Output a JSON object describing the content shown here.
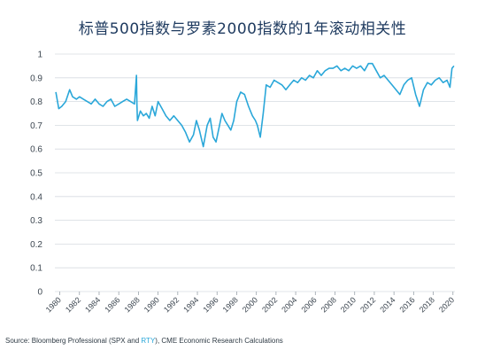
{
  "chart_data": {
    "type": "line",
    "title": "标普500指数与罗素2000指数的1年滚动相关性",
    "xlabel": "",
    "ylabel": "",
    "ylim": [
      0,
      1
    ],
    "xlim": [
      1979.5,
      2020.2
    ],
    "yticks": [
      "0",
      "0.1",
      "0.2",
      "0.3",
      "0.4",
      "0.5",
      "0.6",
      "0.7",
      "0.8",
      "0.9",
      "1"
    ],
    "xticks": [
      "1980",
      "1982",
      "1984",
      "1986",
      "1988",
      "1990",
      "1992",
      "1994",
      "1996",
      "1998",
      "2000",
      "2002",
      "2004",
      "2006",
      "2008",
      "2010",
      "2012",
      "2014",
      "2016",
      "2018",
      "2020"
    ],
    "grid": "horizontal",
    "legend": "none",
    "series": [
      {
        "color": "#2aa7d9",
        "x": [
          1979.6,
          1979.9,
          1980.2,
          1980.6,
          1981.0,
          1981.3,
          1981.7,
          1982.0,
          1982.4,
          1982.8,
          1983.2,
          1983.6,
          1984.0,
          1984.4,
          1984.8,
          1985.2,
          1985.6,
          1986.0,
          1986.4,
          1986.8,
          1987.2,
          1987.6,
          1987.8,
          1987.85,
          1987.9,
          1988.2,
          1988.5,
          1988.8,
          1989.1,
          1989.4,
          1989.7,
          1990.0,
          1990.4,
          1990.8,
          1991.2,
          1991.6,
          1992.0,
          1992.4,
          1992.8,
          1993.2,
          1993.6,
          1993.9,
          1994.2,
          1994.6,
          1995.0,
          1995.3,
          1995.6,
          1995.9,
          1996.2,
          1996.5,
          1996.8,
          1997.1,
          1997.4,
          1997.7,
          1998.0,
          1998.4,
          1998.8,
          1999.2,
          1999.6,
          1999.9,
          2000.1,
          2000.4,
          2000.7,
          2001.0,
          2001.4,
          2001.8,
          2002.2,
          2002.6,
          2003.0,
          2003.4,
          2003.8,
          2004.2,
          2004.6,
          2005.0,
          2005.4,
          2005.8,
          2006.2,
          2006.6,
          2007.0,
          2007.4,
          2007.8,
          2008.2,
          2008.6,
          2009.0,
          2009.4,
          2009.8,
          2010.2,
          2010.6,
          2011.0,
          2011.4,
          2011.8,
          2012.2,
          2012.6,
          2013.0,
          2013.4,
          2013.8,
          2014.2,
          2014.6,
          2015.0,
          2015.4,
          2015.8,
          2016.2,
          2016.6,
          2017.0,
          2017.4,
          2017.8,
          2018.2,
          2018.6,
          2019.0,
          2019.4,
          2019.7,
          2019.9,
          2020.1
        ],
        "y": [
          0.84,
          0.77,
          0.78,
          0.8,
          0.85,
          0.82,
          0.81,
          0.82,
          0.81,
          0.8,
          0.79,
          0.81,
          0.79,
          0.78,
          0.8,
          0.81,
          0.78,
          0.79,
          0.8,
          0.81,
          0.8,
          0.79,
          0.91,
          0.79,
          0.72,
          0.76,
          0.74,
          0.75,
          0.73,
          0.78,
          0.74,
          0.8,
          0.77,
          0.74,
          0.72,
          0.74,
          0.72,
          0.7,
          0.67,
          0.63,
          0.66,
          0.72,
          0.68,
          0.61,
          0.7,
          0.73,
          0.65,
          0.63,
          0.69,
          0.75,
          0.72,
          0.7,
          0.68,
          0.72,
          0.8,
          0.84,
          0.83,
          0.78,
          0.74,
          0.72,
          0.7,
          0.65,
          0.75,
          0.87,
          0.86,
          0.89,
          0.88,
          0.87,
          0.85,
          0.87,
          0.89,
          0.88,
          0.9,
          0.89,
          0.91,
          0.9,
          0.93,
          0.91,
          0.93,
          0.94,
          0.94,
          0.95,
          0.93,
          0.94,
          0.93,
          0.95,
          0.94,
          0.95,
          0.93,
          0.96,
          0.96,
          0.93,
          0.9,
          0.91,
          0.89,
          0.87,
          0.85,
          0.83,
          0.87,
          0.89,
          0.9,
          0.83,
          0.78,
          0.85,
          0.88,
          0.87,
          0.89,
          0.9,
          0.88,
          0.89,
          0.86,
          0.94,
          0.95
        ]
      }
    ]
  },
  "source": {
    "prefix": "Source: Bloomberg Professional (SPX and ",
    "highlight": "RTY",
    "suffix": "), CME Economic Research Calculations"
  }
}
